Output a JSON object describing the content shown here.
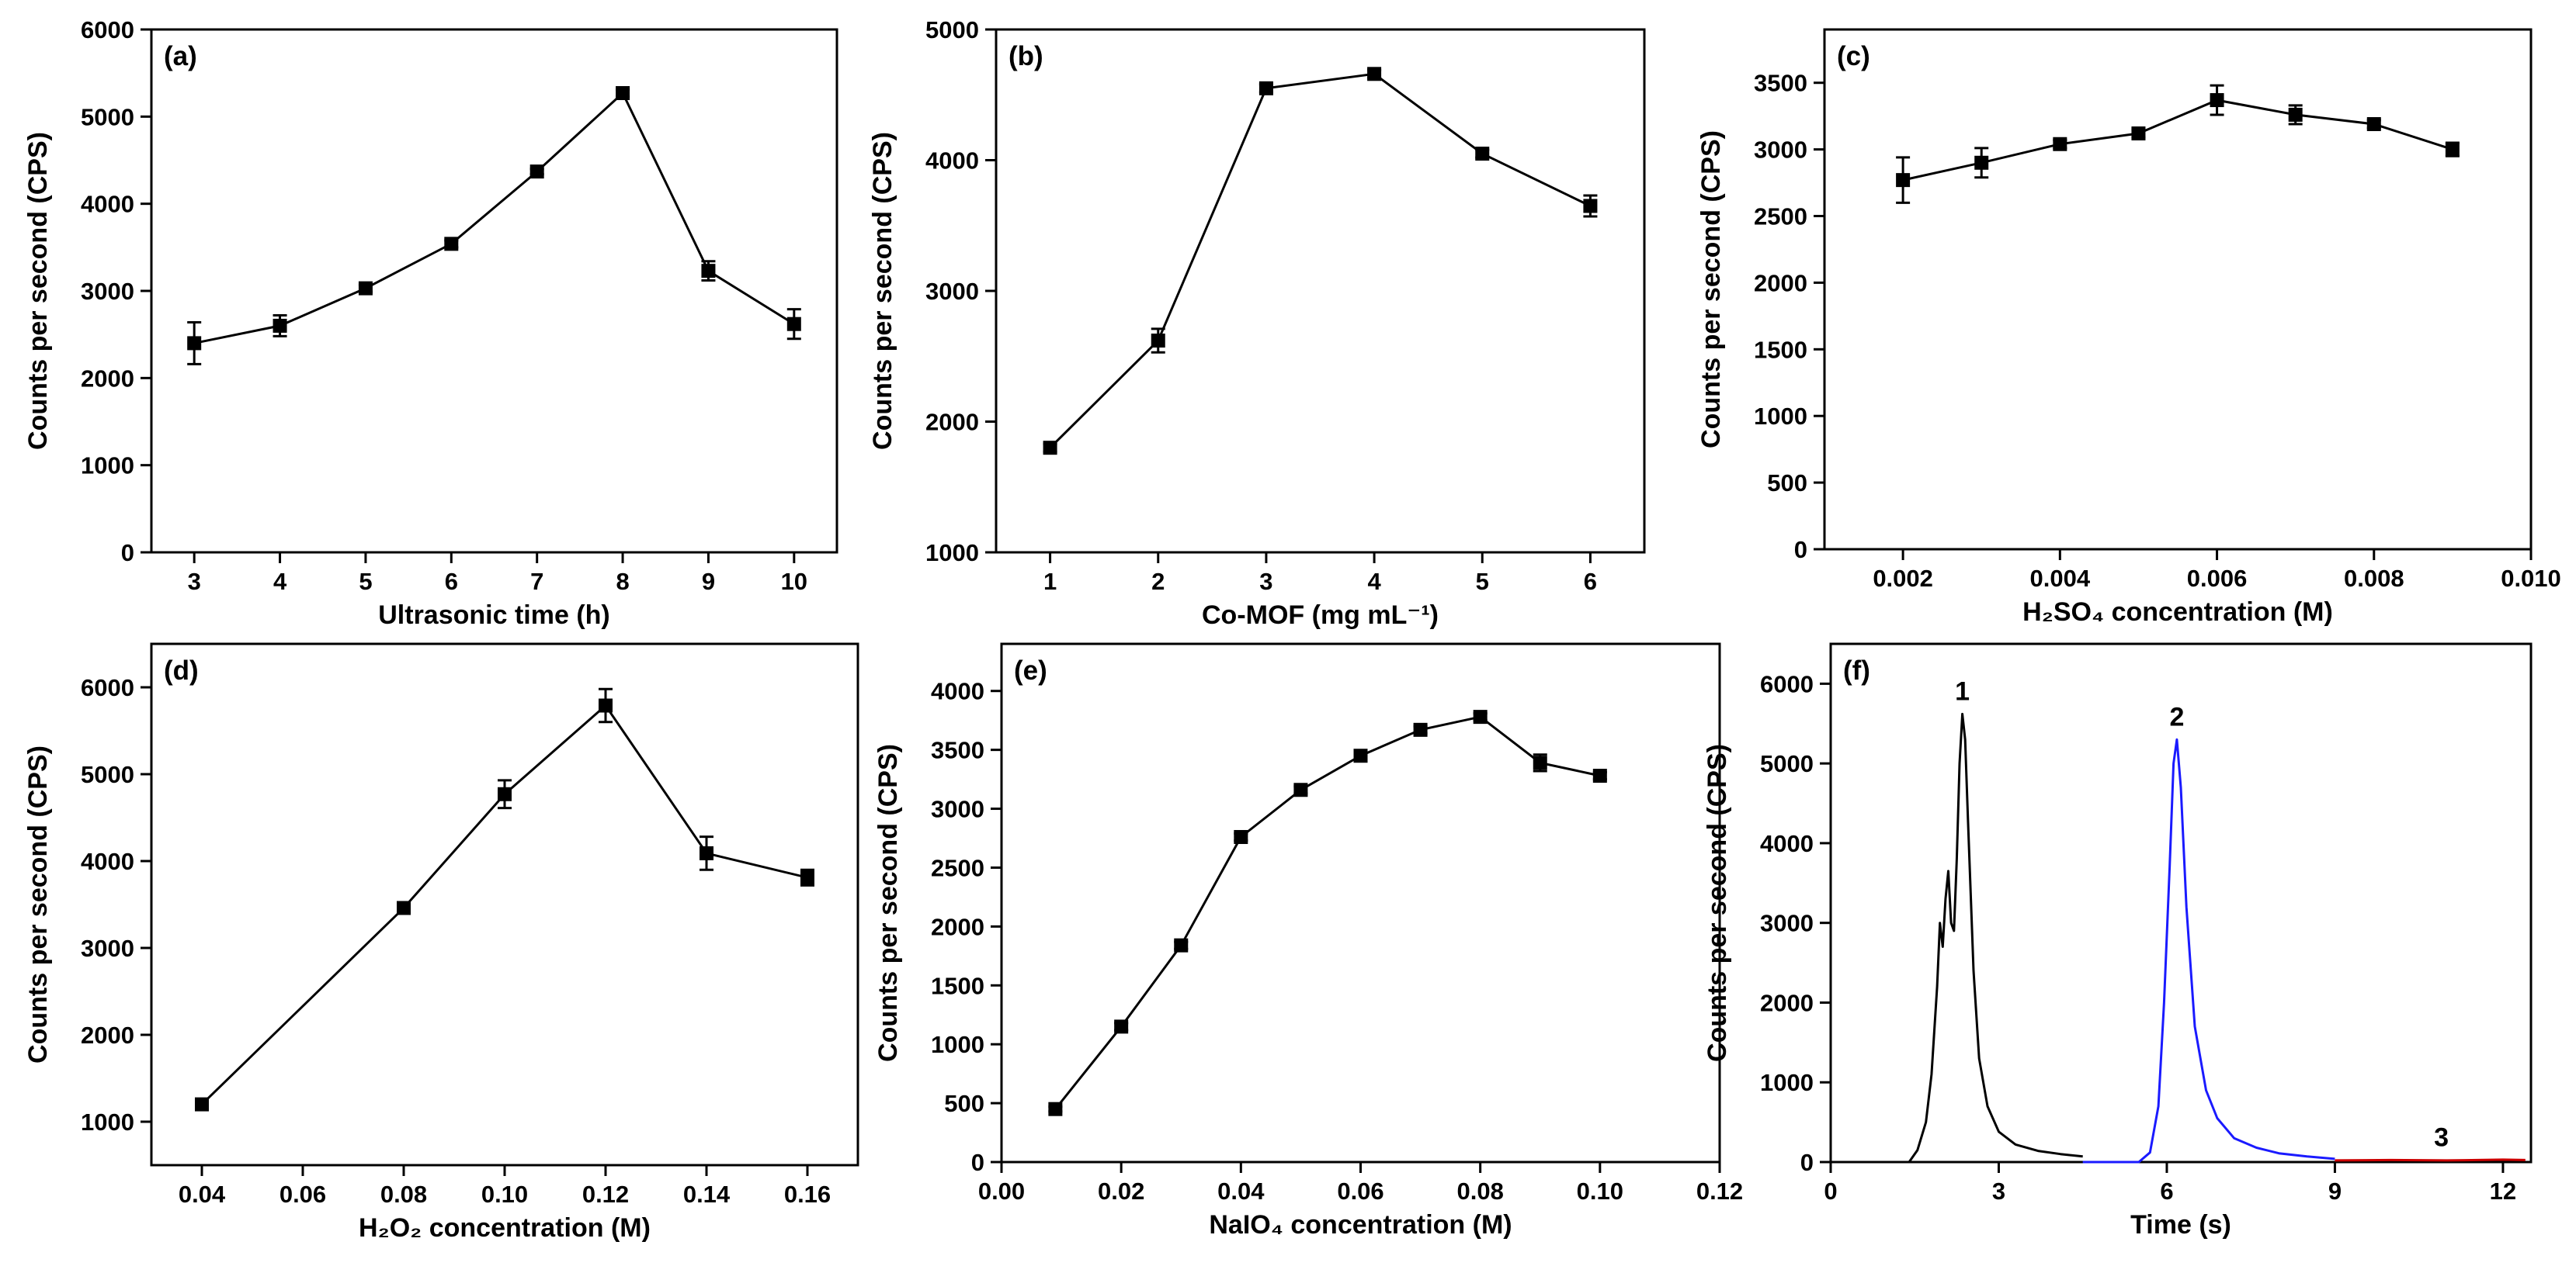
{
  "chart_data": [
    {
      "id": "a",
      "panel_label": "(a)",
      "type": "line",
      "xlabel": "Ultrasonic time (h)",
      "ylabel": "Counts per second (CPS)",
      "xlim": [
        2.5,
        10.5
      ],
      "ylim": [
        0,
        6000
      ],
      "xticks": [
        "3",
        "4",
        "5",
        "6",
        "7",
        "8",
        "9",
        "10"
      ],
      "yticks": [
        "0",
        "1000",
        "2000",
        "3000",
        "4000",
        "5000",
        "6000"
      ],
      "x": [
        3,
        4,
        5,
        6,
        7,
        8,
        9,
        10
      ],
      "values": [
        2400,
        2600,
        3030,
        3540,
        4370,
        5270,
        3230,
        2620
      ],
      "errors": [
        240,
        120,
        40,
        40,
        30,
        40,
        110,
        170
      ]
    },
    {
      "id": "b",
      "panel_label": "(b)",
      "type": "line",
      "xlabel": "Co-MOF (mg mL⁻¹)",
      "ylabel": "Counts per second (CPS)",
      "xlim": [
        0.5,
        6.5
      ],
      "ylim": [
        1000,
        5000
      ],
      "xticks": [
        "1",
        "2",
        "3",
        "4",
        "5",
        "6"
      ],
      "yticks": [
        "1000",
        "2000",
        "3000",
        "4000",
        "5000"
      ],
      "x": [
        1,
        2,
        3,
        4,
        5,
        6
      ],
      "values": [
        1800,
        2620,
        4550,
        4660,
        4050,
        3650
      ],
      "errors": [
        30,
        90,
        30,
        30,
        30,
        80
      ]
    },
    {
      "id": "c",
      "panel_label": "(c)",
      "type": "line",
      "xlabel": "H₂SO₄ concentration (M)",
      "ylabel": "Counts per second (CPS)",
      "xlim": [
        0.001,
        0.01
      ],
      "ylim": [
        0,
        3900
      ],
      "xticks": [
        "0.002",
        "0.004",
        "0.006",
        "0.008",
        "0.010"
      ],
      "yticks": [
        "0",
        "500",
        "1000",
        "1500",
        "2000",
        "2500",
        "3000",
        "3500"
      ],
      "x": [
        0.002,
        0.003,
        0.004,
        0.005,
        0.006,
        0.007,
        0.008,
        0.009
      ],
      "values": [
        2770,
        2900,
        3040,
        3120,
        3370,
        3260,
        3190,
        3000
      ],
      "errors": [
        170,
        110,
        30,
        30,
        110,
        70,
        30,
        50
      ]
    },
    {
      "id": "d",
      "panel_label": "(d)",
      "type": "line",
      "xlabel": "H₂O₂ concentration (M)",
      "ylabel": "Counts per second (CPS)",
      "xlim": [
        0.03,
        0.17
      ],
      "ylim": [
        500,
        6500
      ],
      "xticks": [
        "0.04",
        "0.06",
        "0.08",
        "0.10",
        "0.12",
        "0.14",
        "0.16"
      ],
      "yticks": [
        "1000",
        "2000",
        "3000",
        "4000",
        "5000",
        "6000"
      ],
      "x": [
        0.04,
        0.08,
        0.1,
        0.12,
        0.14,
        0.16
      ],
      "values": [
        1200,
        3460,
        4770,
        5790,
        4090,
        3810
      ],
      "errors": [
        30,
        50,
        160,
        190,
        190,
        90
      ]
    },
    {
      "id": "e",
      "panel_label": "(e)",
      "type": "line",
      "xlabel": "NaIO₄ concentration (M)",
      "ylabel": "Counts per second (CPS)",
      "xlim": [
        0.0,
        0.12
      ],
      "ylim": [
        0,
        4400
      ],
      "xticks": [
        "0.00",
        "0.02",
        "0.04",
        "0.06",
        "0.08",
        "0.10",
        "0.12"
      ],
      "yticks": [
        "0",
        "500",
        "1000",
        "1500",
        "2000",
        "2500",
        "3000",
        "3500",
        "4000"
      ],
      "x": [
        0.009,
        0.02,
        0.03,
        0.04,
        0.05,
        0.06,
        0.07,
        0.08,
        0.09,
        0.1
      ],
      "values": [
        450,
        1150,
        1840,
        2760,
        3160,
        3450,
        3670,
        3780,
        3390,
        3280
      ],
      "errors": [
        20,
        30,
        30,
        30,
        30,
        30,
        30,
        30,
        70,
        30
      ]
    },
    {
      "id": "f",
      "panel_label": "(f)",
      "type": "line",
      "xlabel": "Time (s)",
      "ylabel": "Counts per second (CPS)",
      "xlim": [
        0,
        12.5
      ],
      "ylim": [
        0,
        6500
      ],
      "xticks": [
        "0",
        "3",
        "6",
        "9",
        "12"
      ],
      "yticks": [
        "0",
        "1000",
        "2000",
        "3000",
        "4000",
        "5000",
        "6000"
      ],
      "series": [
        {
          "name": "1",
          "color": "#000000",
          "x": [
            0,
            1.4,
            1.55,
            1.7,
            1.8,
            1.9,
            1.95,
            2.0,
            2.05,
            2.1,
            2.15,
            2.2,
            2.25,
            2.3,
            2.35,
            2.4,
            2.45,
            2.55,
            2.65,
            2.8,
            3.0,
            3.3,
            3.7,
            4.1,
            4.5
          ],
          "values": [
            0,
            0,
            150,
            500,
            1100,
            2200,
            3000,
            2700,
            3300,
            3650,
            3000,
            2900,
            3800,
            5000,
            5620,
            5300,
            4300,
            2400,
            1300,
            700,
            380,
            220,
            140,
            100,
            70
          ]
        },
        {
          "name": "2",
          "color": "#1a1aff",
          "x": [
            4.5,
            5.5,
            5.7,
            5.85,
            5.95,
            6.05,
            6.12,
            6.18,
            6.25,
            6.35,
            6.5,
            6.7,
            6.9,
            7.2,
            7.6,
            8.0,
            8.5,
            9.0
          ],
          "values": [
            0,
            0,
            120,
            700,
            2000,
            3700,
            5000,
            5300,
            4700,
            3200,
            1700,
            900,
            550,
            300,
            180,
            110,
            70,
            40
          ]
        },
        {
          "name": "3",
          "color": "#cc0000",
          "x": [
            9.0,
            10.0,
            11.0,
            12.0,
            12.4
          ],
          "values": [
            20,
            25,
            20,
            30,
            25
          ]
        }
      ],
      "peak_labels": [
        {
          "text": "1",
          "x": 2.35,
          "y": 5620
        },
        {
          "text": "2",
          "x": 6.18,
          "y": 5300
        },
        {
          "text": "3",
          "x": 10.9,
          "y": 25
        }
      ]
    }
  ]
}
